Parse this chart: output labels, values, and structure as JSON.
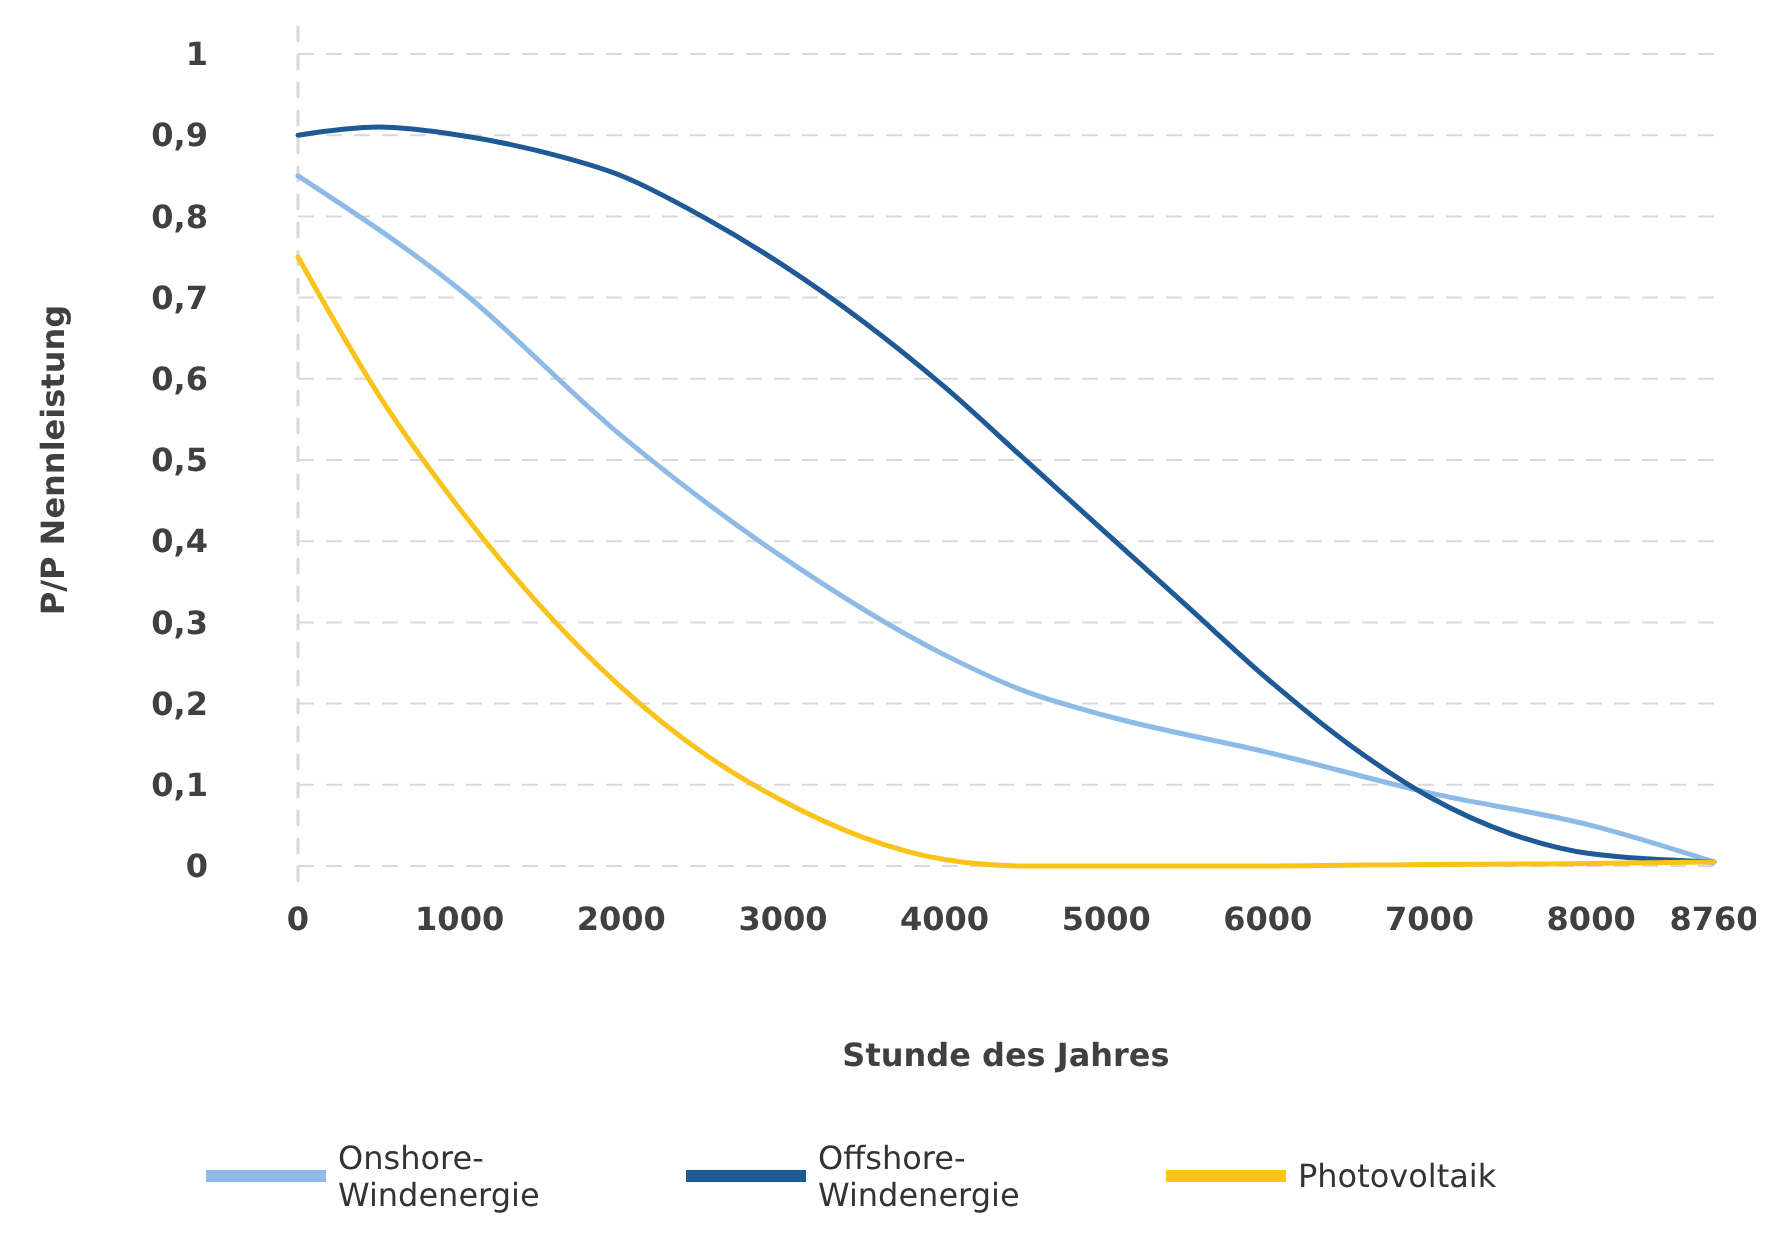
{
  "chart_data": {
    "type": "line",
    "xlabel": "Stunde des Jahres",
    "ylabel": "P/P Nennleistung",
    "xlim": [
      0,
      8760
    ],
    "xticks": [
      0,
      1000,
      2000,
      3000,
      4000,
      5000,
      6000,
      7000,
      8000,
      8760
    ],
    "ylim": [
      0,
      1
    ],
    "yticks": [
      0,
      {
        "value": 0.1,
        "label": "0,1"
      },
      {
        "value": 0.2,
        "label": "0,2"
      },
      {
        "value": 0.3,
        "label": "0,3"
      },
      {
        "value": 0.4,
        "label": "0,4"
      },
      {
        "value": 0.5,
        "label": "0,5"
      },
      {
        "value": 0.6,
        "label": "0,6"
      },
      {
        "value": 0.7,
        "label": "0,7"
      },
      {
        "value": 0.8,
        "label": "0,8"
      },
      {
        "value": 0.9,
        "label": "0,9"
      },
      1
    ],
    "grid": "y",
    "legend": "bottom",
    "marker": "none",
    "line_style": "solid",
    "series": [
      {
        "name": "Onshore-Windenergie",
        "color": "#8dbbe6",
        "x": [
          0,
          1000,
          2000,
          3000,
          4000,
          4500,
          5000,
          6000,
          7000,
          8000,
          8760
        ],
        "values": [
          0.85,
          0.71,
          0.53,
          0.38,
          0.26,
          0.215,
          0.185,
          0.14,
          0.09,
          0.05,
          0.005
        ]
      },
      {
        "name": "Offshore-Windenergie",
        "color": "#1f5a96",
        "x": [
          0,
          500,
          1000,
          1500,
          2000,
          2500,
          3000,
          3500,
          4000,
          4500,
          5000,
          5500,
          6000,
          6500,
          7000,
          7500,
          8000,
          8760
        ],
        "values": [
          0.9,
          0.91,
          0.9,
          0.88,
          0.85,
          0.8,
          0.74,
          0.67,
          0.59,
          0.5,
          0.41,
          0.32,
          0.23,
          0.15,
          0.085,
          0.04,
          0.015,
          0.005
        ]
      },
      {
        "name": "Photovoltaik",
        "color": "#f9c31a",
        "x": [
          0,
          500,
          1000,
          1500,
          2000,
          2500,
          3000,
          3500,
          4000,
          4500,
          6000,
          7000,
          8000,
          8760
        ],
        "values": [
          0.75,
          0.58,
          0.44,
          0.32,
          0.22,
          0.14,
          0.08,
          0.035,
          0.008,
          0,
          0,
          0.002,
          0.003,
          0.005
        ]
      }
    ]
  }
}
